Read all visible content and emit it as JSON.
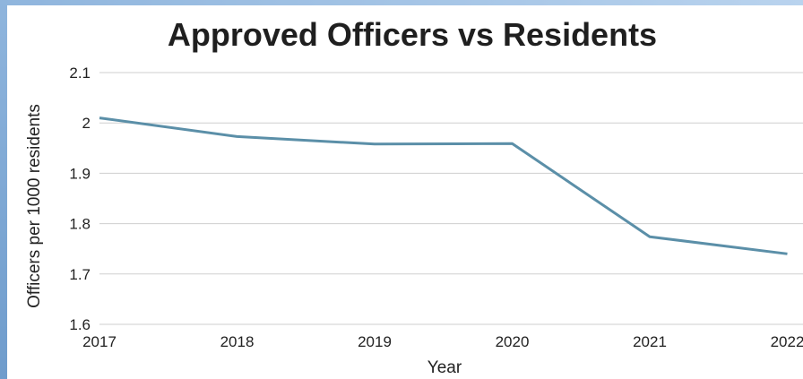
{
  "chart_data": {
    "type": "line",
    "title": "Approved Officers vs Residents",
    "xlabel": "Year",
    "ylabel": "Officers per 1000 residents",
    "x": [
      "2017",
      "2018",
      "2019",
      "2020",
      "2021",
      "2022"
    ],
    "series": [
      {
        "values": [
          2.01,
          1.973,
          1.958,
          1.959,
          1.774,
          1.74
        ]
      }
    ],
    "ylim": [
      1.6,
      2.1
    ],
    "yticks": [
      "1.6",
      "1.7",
      "1.8",
      "1.9",
      "2",
      "2.1"
    ],
    "grid": true,
    "line_color": "#5b8fa8",
    "grid_color": "#cfcfcf"
  }
}
